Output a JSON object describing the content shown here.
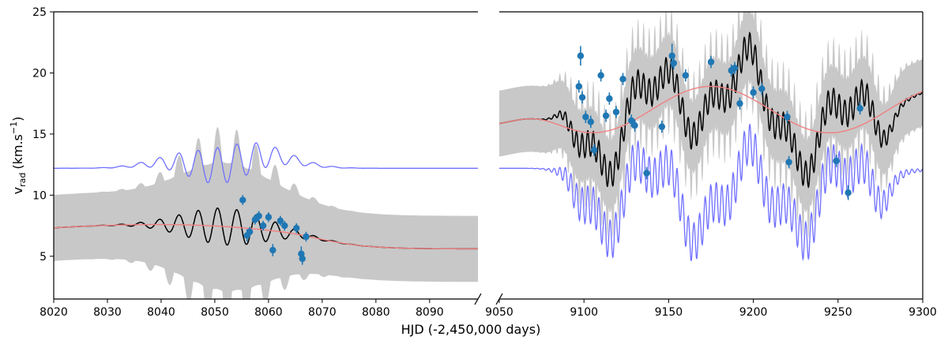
{
  "chart_data": {
    "type": "line",
    "xlabel": "HJD (-2,450,000 days)",
    "ylabel": "v",
    "ylabel_sub": "rad",
    "ylabel_unit_prefix": "(km.s",
    "ylabel_unit_sup": "−1",
    "ylabel_unit_suffix": ")",
    "ylim": [
      1.5,
      25
    ],
    "yticks": [
      5,
      10,
      15,
      20,
      25
    ],
    "grid": false,
    "broken_x_axis": true,
    "colors": {
      "model": "#000000",
      "band": "#c8c8c8",
      "trend": "#f08080",
      "trend_dark": "#8b1a1a",
      "offset_model": "#7070ff",
      "points": "#1f77b4"
    },
    "panels": [
      {
        "id": "left",
        "xlim": [
          8020,
          8099
        ],
        "xticks": [
          8020,
          8030,
          8040,
          8050,
          8060,
          8070,
          8080,
          8090
        ],
        "observations": [
          {
            "x": 8055.2,
            "y": 9.6,
            "err": 0.4
          },
          {
            "x": 8056.0,
            "y": 6.7,
            "err": 0.5
          },
          {
            "x": 8056.5,
            "y": 7.0,
            "err": 0.4
          },
          {
            "x": 8057.5,
            "y": 8.0,
            "err": 0.4
          },
          {
            "x": 8058.2,
            "y": 8.3,
            "err": 0.4
          },
          {
            "x": 8059.0,
            "y": 7.5,
            "err": 0.4
          },
          {
            "x": 8060.0,
            "y": 8.2,
            "err": 0.4
          },
          {
            "x": 8060.8,
            "y": 5.5,
            "err": 0.5
          },
          {
            "x": 8062.2,
            "y": 7.9,
            "err": 0.4
          },
          {
            "x": 8063.0,
            "y": 7.5,
            "err": 0.4
          },
          {
            "x": 8065.2,
            "y": 7.3,
            "err": 0.4
          },
          {
            "x": 8066.1,
            "y": 5.2,
            "err": 0.6
          },
          {
            "x": 8066.3,
            "y": 4.8,
            "err": 0.5
          },
          {
            "x": 8067.0,
            "y": 6.6,
            "err": 0.4
          }
        ]
      },
      {
        "id": "right",
        "xlim": [
          9050,
          9300
        ],
        "xticks": [
          9050,
          9100,
          9150,
          9200,
          9250,
          9300
        ],
        "observations": [
          {
            "x": 9097,
            "y": 18.9,
            "err": 0.5
          },
          {
            "x": 9098,
            "y": 21.4,
            "err": 0.8
          },
          {
            "x": 9099,
            "y": 18.0,
            "err": 0.5
          },
          {
            "x": 9101,
            "y": 16.4,
            "err": 0.5
          },
          {
            "x": 9104,
            "y": 16.0,
            "err": 0.5
          },
          {
            "x": 9106,
            "y": 13.7,
            "err": 0.5
          },
          {
            "x": 9110,
            "y": 19.8,
            "err": 0.5
          },
          {
            "x": 9113,
            "y": 16.5,
            "err": 0.5
          },
          {
            "x": 9115,
            "y": 17.9,
            "err": 0.5
          },
          {
            "x": 9119,
            "y": 16.8,
            "err": 0.5
          },
          {
            "x": 9123,
            "y": 19.5,
            "err": 0.5
          },
          {
            "x": 9128,
            "y": 16.1,
            "err": 0.5
          },
          {
            "x": 9130,
            "y": 15.7,
            "err": 0.5
          },
          {
            "x": 9137,
            "y": 11.8,
            "err": 0.5
          },
          {
            "x": 9146,
            "y": 15.6,
            "err": 0.5
          },
          {
            "x": 9152,
            "y": 21.4,
            "err": 1.0
          },
          {
            "x": 9153,
            "y": 20.8,
            "err": 0.5
          },
          {
            "x": 9160,
            "y": 19.8,
            "err": 0.5
          },
          {
            "x": 9175,
            "y": 20.9,
            "err": 0.5
          },
          {
            "x": 9187,
            "y": 20.2,
            "err": 0.5
          },
          {
            "x": 9189,
            "y": 20.4,
            "err": 0.5
          },
          {
            "x": 9192,
            "y": 17.5,
            "err": 0.5
          },
          {
            "x": 9200,
            "y": 18.4,
            "err": 0.5
          },
          {
            "x": 9205,
            "y": 18.7,
            "err": 0.5
          },
          {
            "x": 9220,
            "y": 16.4,
            "err": 0.5
          },
          {
            "x": 9221,
            "y": 12.7,
            "err": 0.5
          },
          {
            "x": 9249,
            "y": 12.8,
            "err": 0.5
          },
          {
            "x": 9256,
            "y": 10.2,
            "err": 0.6
          },
          {
            "x": 9263,
            "y": 17.1,
            "err": 0.5
          }
        ]
      }
    ]
  }
}
